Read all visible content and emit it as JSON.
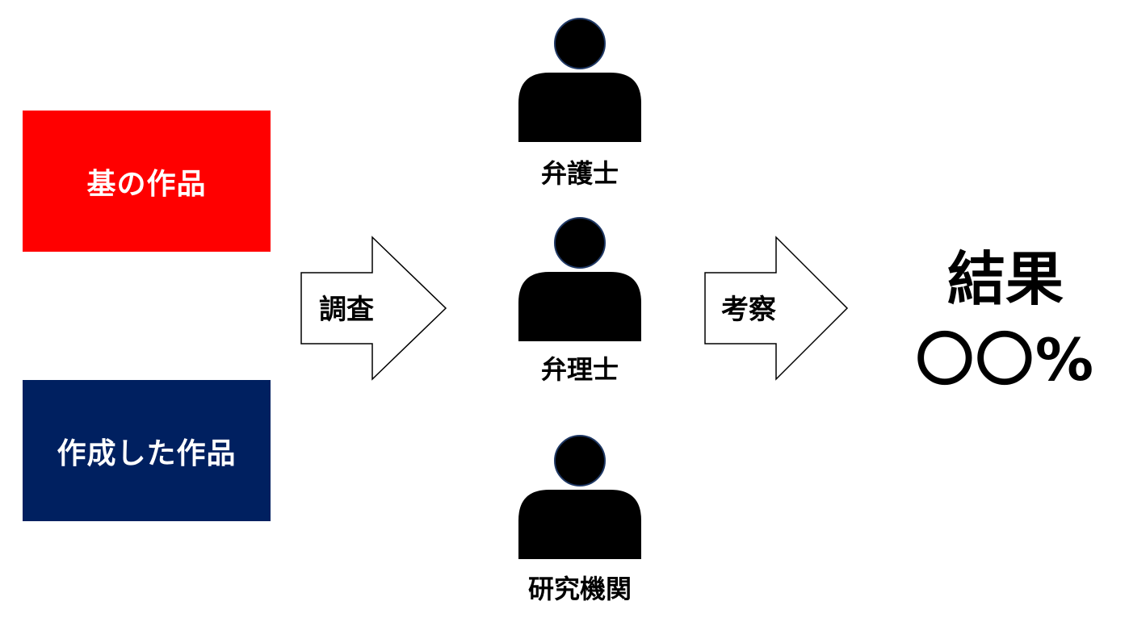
{
  "sources": {
    "original_work": {
      "label": "基の作品",
      "color": "#ff0000"
    },
    "created_work": {
      "label": "作成した作品",
      "color": "#002060"
    }
  },
  "arrows": {
    "research": {
      "label": "調査"
    },
    "analysis": {
      "label": "考察"
    }
  },
  "evaluators": [
    {
      "label": "弁護士",
      "icon": "person-icon"
    },
    {
      "label": "弁理士",
      "icon": "person-icon"
    },
    {
      "label": "研究機関",
      "icon": "person-icon"
    }
  ],
  "result": {
    "title": "結果",
    "value": "〇〇%"
  }
}
